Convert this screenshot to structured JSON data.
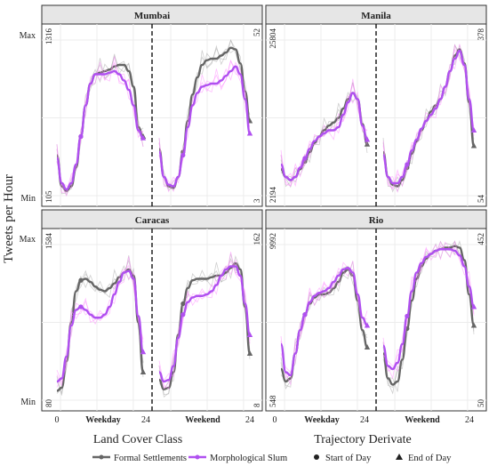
{
  "figure": {
    "ylabel": "Tweets per Hour",
    "ytick_max": "Max",
    "ytick_min": "Min",
    "xticks": [
      "0",
      "24",
      "24"
    ],
    "weekday_label": "Weekday",
    "weekend_label": "Weekend",
    "legend_left": {
      "title": "Land Cover Class",
      "items": [
        {
          "label": "Formal Settlements",
          "color": "#666666"
        },
        {
          "label": "Morphological Slum",
          "color": "#b050f0"
        }
      ]
    },
    "legend_right": {
      "title": "Trajectory Derivate",
      "items": [
        {
          "label": "Start of Day",
          "shape": "circle"
        },
        {
          "label": "End of Day",
          "shape": "triangle"
        }
      ]
    },
    "colors": {
      "formal": "#666666",
      "slum": "#b050f0",
      "strip": "#e6e6e6"
    }
  },
  "chart_data": [
    {
      "type": "line",
      "facet": "Mumbai",
      "formal_max": "1316",
      "formal_min": "105",
      "slum_max": "52",
      "slum_min": "3",
      "x": [
        0,
        1,
        2,
        3,
        4,
        5,
        6,
        7,
        8,
        9,
        10,
        11,
        12,
        13,
        14,
        15,
        16,
        17,
        18,
        19,
        20,
        21,
        22,
        23
      ],
      "series": [
        {
          "name": "Formal Settlements",
          "weekday": [
            0.26,
            0.06,
            0.03,
            0.06,
            0.18,
            0.38,
            0.58,
            0.72,
            0.78,
            0.79,
            0.8,
            0.81,
            0.83,
            0.84,
            0.84,
            0.8,
            0.7,
            0.44,
            0.38
          ],
          "weekend": [
            0.3,
            0.12,
            0.06,
            0.05,
            0.12,
            0.28,
            0.48,
            0.65,
            0.76,
            0.84,
            0.87,
            0.88,
            0.88,
            0.9,
            0.92,
            0.95,
            0.94,
            0.85,
            0.67,
            0.48
          ]
        },
        {
          "name": "Morphological Slum",
          "weekday": [
            0.24,
            0.08,
            0.04,
            0.08,
            0.2,
            0.38,
            0.58,
            0.72,
            0.78,
            0.78,
            0.78,
            0.79,
            0.8,
            0.78,
            0.74,
            0.68,
            0.58,
            0.42,
            0.37
          ],
          "weekend": [
            0.28,
            0.12,
            0.07,
            0.06,
            0.12,
            0.26,
            0.44,
            0.58,
            0.66,
            0.7,
            0.71,
            0.72,
            0.72,
            0.74,
            0.77,
            0.8,
            0.83,
            0.78,
            0.62,
            0.4
          ]
        }
      ]
    },
    {
      "type": "line",
      "facet": "Manila",
      "formal_max": "25804",
      "formal_min": "2194",
      "slum_max": "378",
      "slum_min": "54",
      "x": [
        0,
        1,
        2,
        3,
        4,
        5,
        6,
        7,
        8,
        9,
        10,
        11,
        12,
        13,
        14,
        15,
        16,
        17,
        18,
        19,
        20,
        21,
        22,
        23
      ],
      "series": [
        {
          "name": "Formal Settlements",
          "weekday": [
            0.17,
            0.12,
            0.1,
            0.12,
            0.17,
            0.22,
            0.28,
            0.34,
            0.38,
            0.42,
            0.45,
            0.47,
            0.5,
            0.56,
            0.62,
            0.66,
            0.62,
            0.46,
            0.33
          ],
          "weekend": [
            0.28,
            0.12,
            0.07,
            0.06,
            0.1,
            0.18,
            0.27,
            0.35,
            0.42,
            0.48,
            0.54,
            0.58,
            0.62,
            0.7,
            0.8,
            0.9,
            0.94,
            0.85,
            0.6,
            0.32
          ]
        },
        {
          "name": "Morphological Slum",
          "weekday": [
            0.2,
            0.12,
            0.1,
            0.12,
            0.18,
            0.24,
            0.3,
            0.35,
            0.38,
            0.4,
            0.42,
            0.42,
            0.44,
            0.52,
            0.6,
            0.66,
            0.62,
            0.45,
            0.36
          ],
          "weekend": [
            0.26,
            0.12,
            0.08,
            0.08,
            0.12,
            0.2,
            0.29,
            0.36,
            0.43,
            0.48,
            0.52,
            0.56,
            0.62,
            0.7,
            0.8,
            0.88,
            0.93,
            0.84,
            0.62,
            0.42
          ]
        }
      ]
    },
    {
      "type": "line",
      "facet": "Caracas",
      "formal_max": "1584",
      "formal_min": "80",
      "slum_max": "162",
      "slum_min": "8",
      "x": [
        0,
        1,
        2,
        3,
        4,
        5,
        6,
        7,
        8,
        9,
        10,
        11,
        12,
        13,
        14,
        15,
        16,
        17,
        18,
        19,
        20,
        21,
        22,
        23
      ],
      "series": [
        {
          "name": "Formal Settlements",
          "weekday": [
            0.06,
            0.08,
            0.25,
            0.5,
            0.7,
            0.77,
            0.78,
            0.76,
            0.73,
            0.71,
            0.7,
            0.72,
            0.75,
            0.79,
            0.82,
            0.84,
            0.8,
            0.5,
            0.18
          ],
          "weekend": [
            0.13,
            0.07,
            0.08,
            0.18,
            0.42,
            0.62,
            0.72,
            0.77,
            0.78,
            0.78,
            0.78,
            0.79,
            0.8,
            0.8,
            0.82,
            0.85,
            0.88,
            0.84,
            0.6,
            0.3
          ]
        },
        {
          "name": "Morphological Slum",
          "weekday": [
            0.12,
            0.14,
            0.28,
            0.48,
            0.58,
            0.6,
            0.58,
            0.55,
            0.53,
            0.53,
            0.55,
            0.6,
            0.68,
            0.76,
            0.82,
            0.83,
            0.78,
            0.54,
            0.31
          ]
        },
        {
          "name": "Morphological Slum",
          "weekend": [
            0.18,
            0.12,
            0.13,
            0.22,
            0.4,
            0.55,
            0.63,
            0.66,
            0.67,
            0.67,
            0.68,
            0.7,
            0.74,
            0.8,
            0.84,
            0.86,
            0.86,
            0.8,
            0.62,
            0.42
          ]
        }
      ]
    },
    {
      "type": "line",
      "facet": "Rio",
      "formal_max": "9992",
      "formal_min": "548",
      "slum_max": "452",
      "slum_min": "50",
      "x": [
        0,
        1,
        2,
        3,
        4,
        5,
        6,
        7,
        8,
        9,
        10,
        11,
        12,
        13,
        14,
        15,
        16,
        17,
        18,
        19,
        20,
        21,
        22,
        23
      ],
      "series": [
        {
          "name": "Formal Settlements",
          "weekday": [
            0.2,
            0.12,
            0.14,
            0.3,
            0.45,
            0.55,
            0.62,
            0.66,
            0.68,
            0.68,
            0.69,
            0.72,
            0.76,
            0.82,
            0.84,
            0.8,
            0.64,
            0.45,
            0.34
          ],
          "weekend": [
            0.3,
            0.14,
            0.1,
            0.12,
            0.26,
            0.46,
            0.64,
            0.78,
            0.86,
            0.91,
            0.94,
            0.96,
            0.97,
            0.98,
            0.98,
            0.99,
            0.98,
            0.9,
            0.68,
            0.48
          ]
        },
        {
          "name": "Morphological Slum",
          "weekday": [
            0.36,
            0.18,
            0.16,
            0.3,
            0.45,
            0.55,
            0.63,
            0.67,
            0.69,
            0.7,
            0.72,
            0.76,
            0.8,
            0.84,
            0.85,
            0.82,
            0.68,
            0.53,
            0.48
          ],
          "weekend": [
            0.35,
            0.22,
            0.2,
            0.24,
            0.36,
            0.54,
            0.7,
            0.82,
            0.88,
            0.92,
            0.94,
            0.96,
            0.97,
            0.97,
            0.97,
            0.96,
            0.93,
            0.86,
            0.73,
            0.6
          ]
        }
      ]
    }
  ]
}
